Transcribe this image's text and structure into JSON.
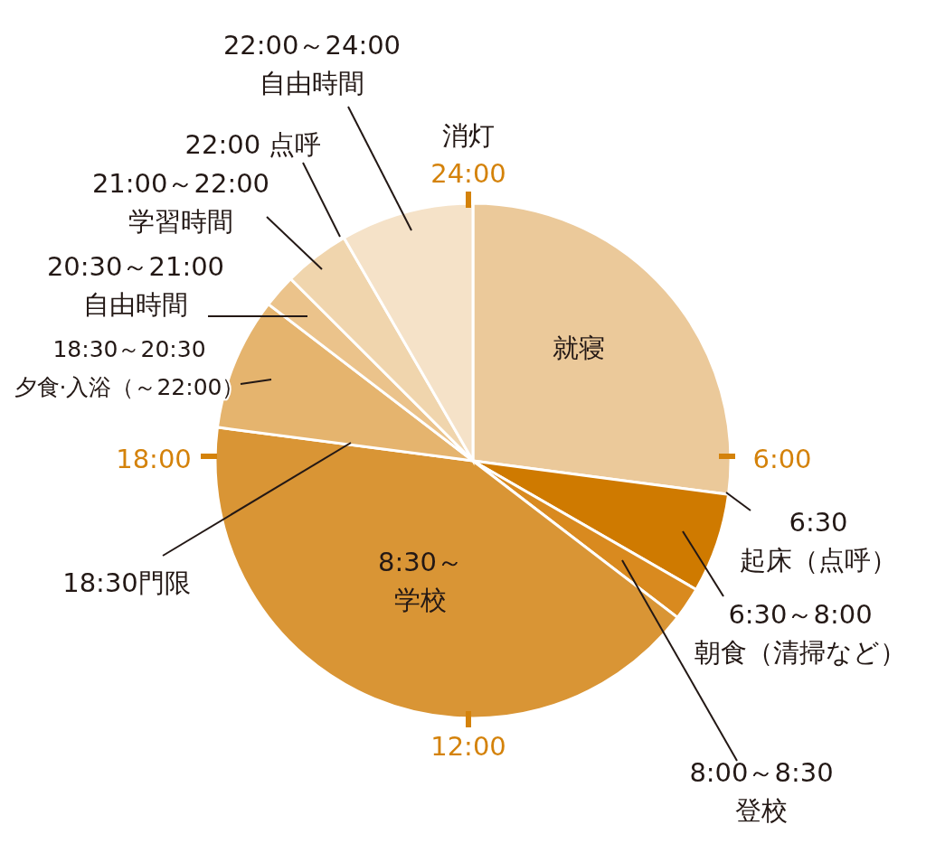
{
  "chart_data": {
    "type": "pie",
    "categories": [
      "就寝",
      "6:30～8:00\n朝食（清掃など）",
      "8:00～8:30\n登校",
      "8:30～学校",
      "18:30～20:30\n夕食·入浴（～22:00）",
      "20:30～21:00\n自由時間",
      "21:00～22:00\n学習時間",
      "22:00～24:00\n自由時間"
    ],
    "values": [
      27.08,
      6.25,
      2.08,
      41.67,
      8.33,
      2.08,
      4.17,
      8.34
    ],
    "colors": [
      "#ebc99a",
      "#cf7a00",
      "#d98a1f",
      "#d99535",
      "#e5b46e",
      "#ebc38b",
      "#f0d5ad",
      "#f5e2c8"
    ],
    "annotations": [
      "消灯",
      "24:00",
      "6:00",
      "12:00",
      "18:00",
      "22:00 点呼",
      "18:30門限",
      "6:30\n起床（点呼）"
    ],
    "legend": false
  }
}
